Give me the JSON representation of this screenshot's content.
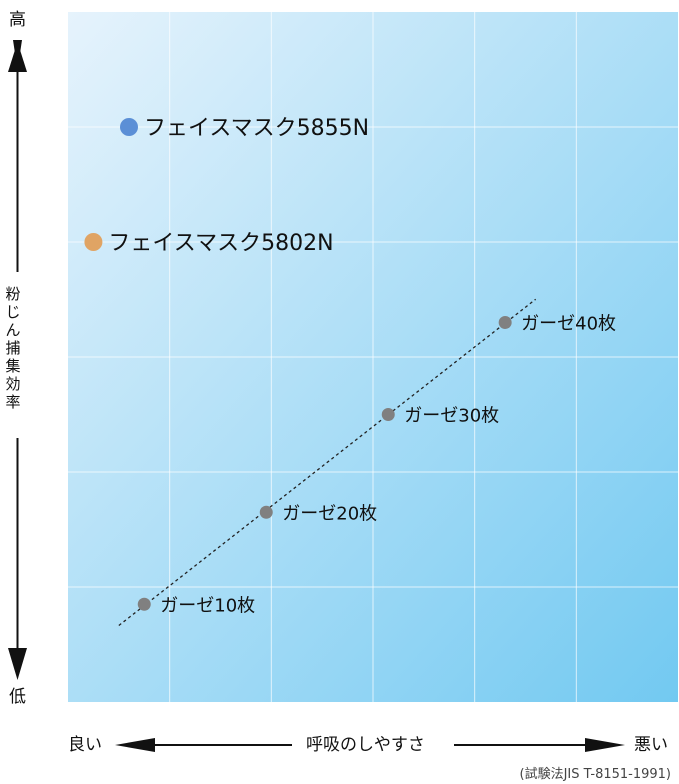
{
  "chart_data": {
    "type": "scatter",
    "title": "",
    "series": [
      {
        "name": "フェイスマスク5855N",
        "color": "#5b8fd6",
        "points": [
          {
            "x": 0.6,
            "y": 5.0
          }
        ]
      },
      {
        "name": "フェイスマスク5802N",
        "color": "#e0a464",
        "points": [
          {
            "x": 0.25,
            "y": 4.0
          }
        ]
      },
      {
        "name": "ガーゼ",
        "color": "#808080",
        "trendline": true,
        "points": [
          {
            "x": 0.75,
            "label": "ガーゼ10枚",
            "y": 0.85
          },
          {
            "x": 1.95,
            "label": "ガーゼ20枚",
            "y": 1.65
          },
          {
            "x": 3.15,
            "label": "ガーゼ30枚",
            "y": 2.5
          },
          {
            "x": 4.3,
            "label": "ガーゼ40枚",
            "y": 3.3
          }
        ]
      }
    ],
    "xlim": [
      0,
      6
    ],
    "ylim": [
      0,
      6
    ],
    "grid": true,
    "xlabel": "呼吸のしやすさ",
    "ylabel": "粉じん捕集効率",
    "x_axis": {
      "low_label": "良い",
      "high_label": "悪い"
    },
    "y_axis": {
      "high_label": "高",
      "low_label": "低"
    },
    "note": "(試験法JIS T-8151-1991)"
  }
}
